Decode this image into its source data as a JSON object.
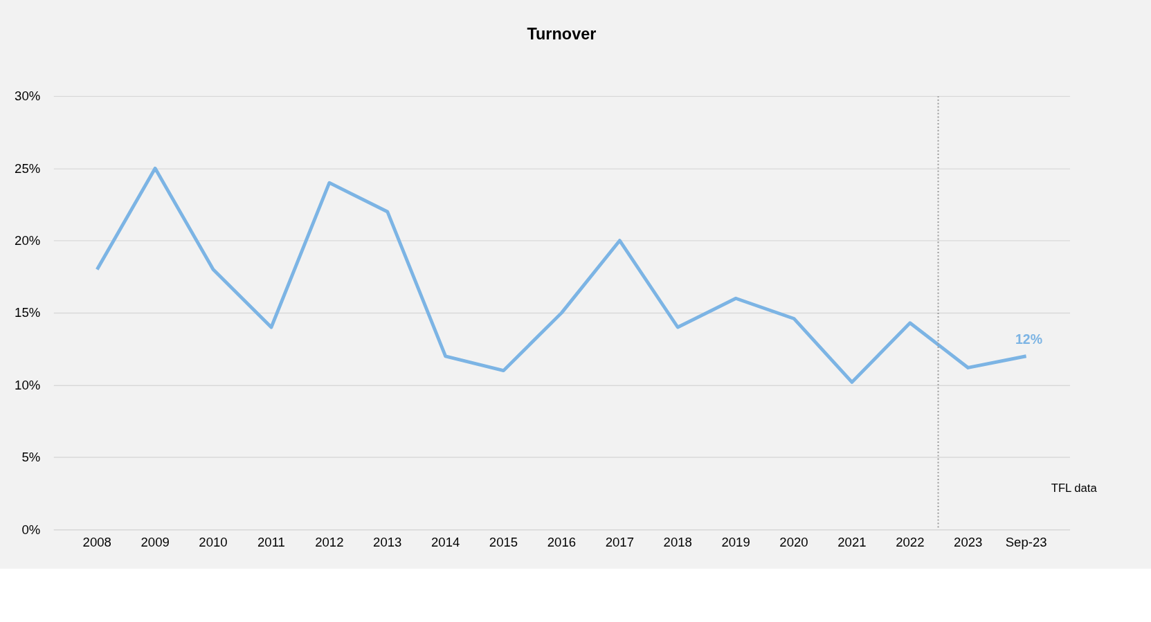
{
  "chart_data": {
    "type": "line",
    "title": "Turnover",
    "categories": [
      "2008",
      "2009",
      "2010",
      "2011",
      "2012",
      "2013",
      "2014",
      "2015",
      "2016",
      "2017",
      "2018",
      "2019",
      "2020",
      "2021",
      "2022",
      "2023",
      "Sep-23"
    ],
    "series": [
      {
        "color": "#7cb4e4",
        "values": [
          18,
          25,
          18,
          14,
          24,
          22,
          12,
          11,
          15,
          20,
          14,
          16,
          14.6,
          10.2,
          14.3,
          11.2,
          12
        ],
        "value_labels": [
          null,
          null,
          null,
          null,
          null,
          null,
          null,
          null,
          null,
          null,
          null,
          null,
          null,
          null,
          null,
          null,
          "12%"
        ]
      }
    ],
    "ylim": [
      0,
      30
    ],
    "yticks": [
      {
        "value": 0,
        "label": "0%"
      },
      {
        "value": 5,
        "label": "5%"
      },
      {
        "value": 10,
        "label": "10%"
      },
      {
        "value": 15,
        "label": "15%"
      },
      {
        "value": 20,
        "label": "20%"
      },
      {
        "value": 25,
        "label": "25%"
      },
      {
        "value": 30,
        "label": "30%"
      }
    ],
    "grid": "y",
    "marker": "none",
    "line_style": "solid",
    "ref_lines": [
      {
        "axis": "x",
        "value": "2023",
        "color": "#999999",
        "line_style": "dotted"
      }
    ],
    "annotations": [
      "TFL data"
    ]
  }
}
